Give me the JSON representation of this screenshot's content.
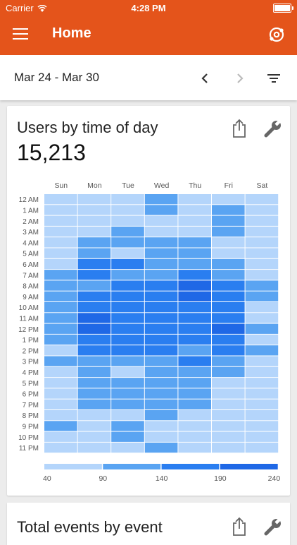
{
  "status_bar": {
    "carrier": "Carrier",
    "time": "4:28 PM"
  },
  "header": {
    "title": "Home",
    "menu_icon": "menu-icon",
    "settings_icon": "analytics-gear-icon"
  },
  "date_bar": {
    "range": "Mar 24 - Mar 30",
    "prev_icon": "chevron-left-icon",
    "next_icon": "chevron-right-icon",
    "filter_icon": "filter-icon"
  },
  "cards": [
    {
      "title": "Users by time of day",
      "value": "15,213",
      "share_icon": "share-icon",
      "settings_icon": "wrench-icon"
    },
    {
      "title": "Total events by event",
      "share_icon": "share-icon",
      "settings_icon": "wrench-icon"
    }
  ],
  "chart_data": {
    "type": "heatmap",
    "days": [
      "Sun",
      "Mon",
      "Tue",
      "Wed",
      "Thu",
      "Fri",
      "Sat"
    ],
    "hours": [
      "12 AM",
      "1 AM",
      "2 AM",
      "3 AM",
      "4 AM",
      "5 AM",
      "6 AM",
      "7 AM",
      "8 AM",
      "9 AM",
      "10 AM",
      "11 AM",
      "12 PM",
      "1 PM",
      "2 PM",
      "3 PM",
      "4 PM",
      "5 PM",
      "6 PM",
      "7 PM",
      "8 PM",
      "9 PM",
      "10 PM",
      "11 PM"
    ],
    "colors": [
      "#b4d5fb",
      "#5aa4f2",
      "#2a7ef0",
      "#1f68e6"
    ],
    "levels": [
      [
        0,
        0,
        0,
        1,
        0,
        0,
        0
      ],
      [
        0,
        0,
        0,
        1,
        0,
        1,
        0
      ],
      [
        0,
        0,
        0,
        0,
        0,
        1,
        0
      ],
      [
        0,
        0,
        1,
        0,
        0,
        1,
        0
      ],
      [
        0,
        1,
        1,
        1,
        1,
        0,
        0
      ],
      [
        0,
        1,
        0,
        1,
        1,
        0,
        0
      ],
      [
        0,
        2,
        2,
        1,
        1,
        1,
        0
      ],
      [
        1,
        2,
        1,
        1,
        2,
        1,
        0
      ],
      [
        1,
        1,
        2,
        2,
        3,
        2,
        1
      ],
      [
        1,
        2,
        2,
        2,
        3,
        2,
        1
      ],
      [
        1,
        2,
        2,
        2,
        2,
        2,
        0
      ],
      [
        1,
        3,
        2,
        2,
        2,
        2,
        0
      ],
      [
        1,
        3,
        2,
        2,
        2,
        3,
        1
      ],
      [
        1,
        2,
        2,
        2,
        2,
        2,
        0
      ],
      [
        0,
        2,
        2,
        2,
        1,
        2,
        1
      ],
      [
        1,
        1,
        1,
        1,
        2,
        1,
        0
      ],
      [
        0,
        1,
        0,
        1,
        1,
        1,
        0
      ],
      [
        0,
        1,
        1,
        1,
        1,
        0,
        0
      ],
      [
        0,
        1,
        1,
        1,
        1,
        0,
        0
      ],
      [
        0,
        1,
        1,
        1,
        1,
        0,
        0
      ],
      [
        0,
        0,
        0,
        1,
        0,
        0,
        0
      ],
      [
        1,
        0,
        1,
        0,
        0,
        0,
        0
      ],
      [
        0,
        0,
        1,
        0,
        0,
        0,
        0
      ],
      [
        0,
        0,
        0,
        1,
        0,
        0,
        0
      ]
    ],
    "legend_ticks": [
      "40",
      "90",
      "140",
      "190",
      "240"
    ]
  }
}
